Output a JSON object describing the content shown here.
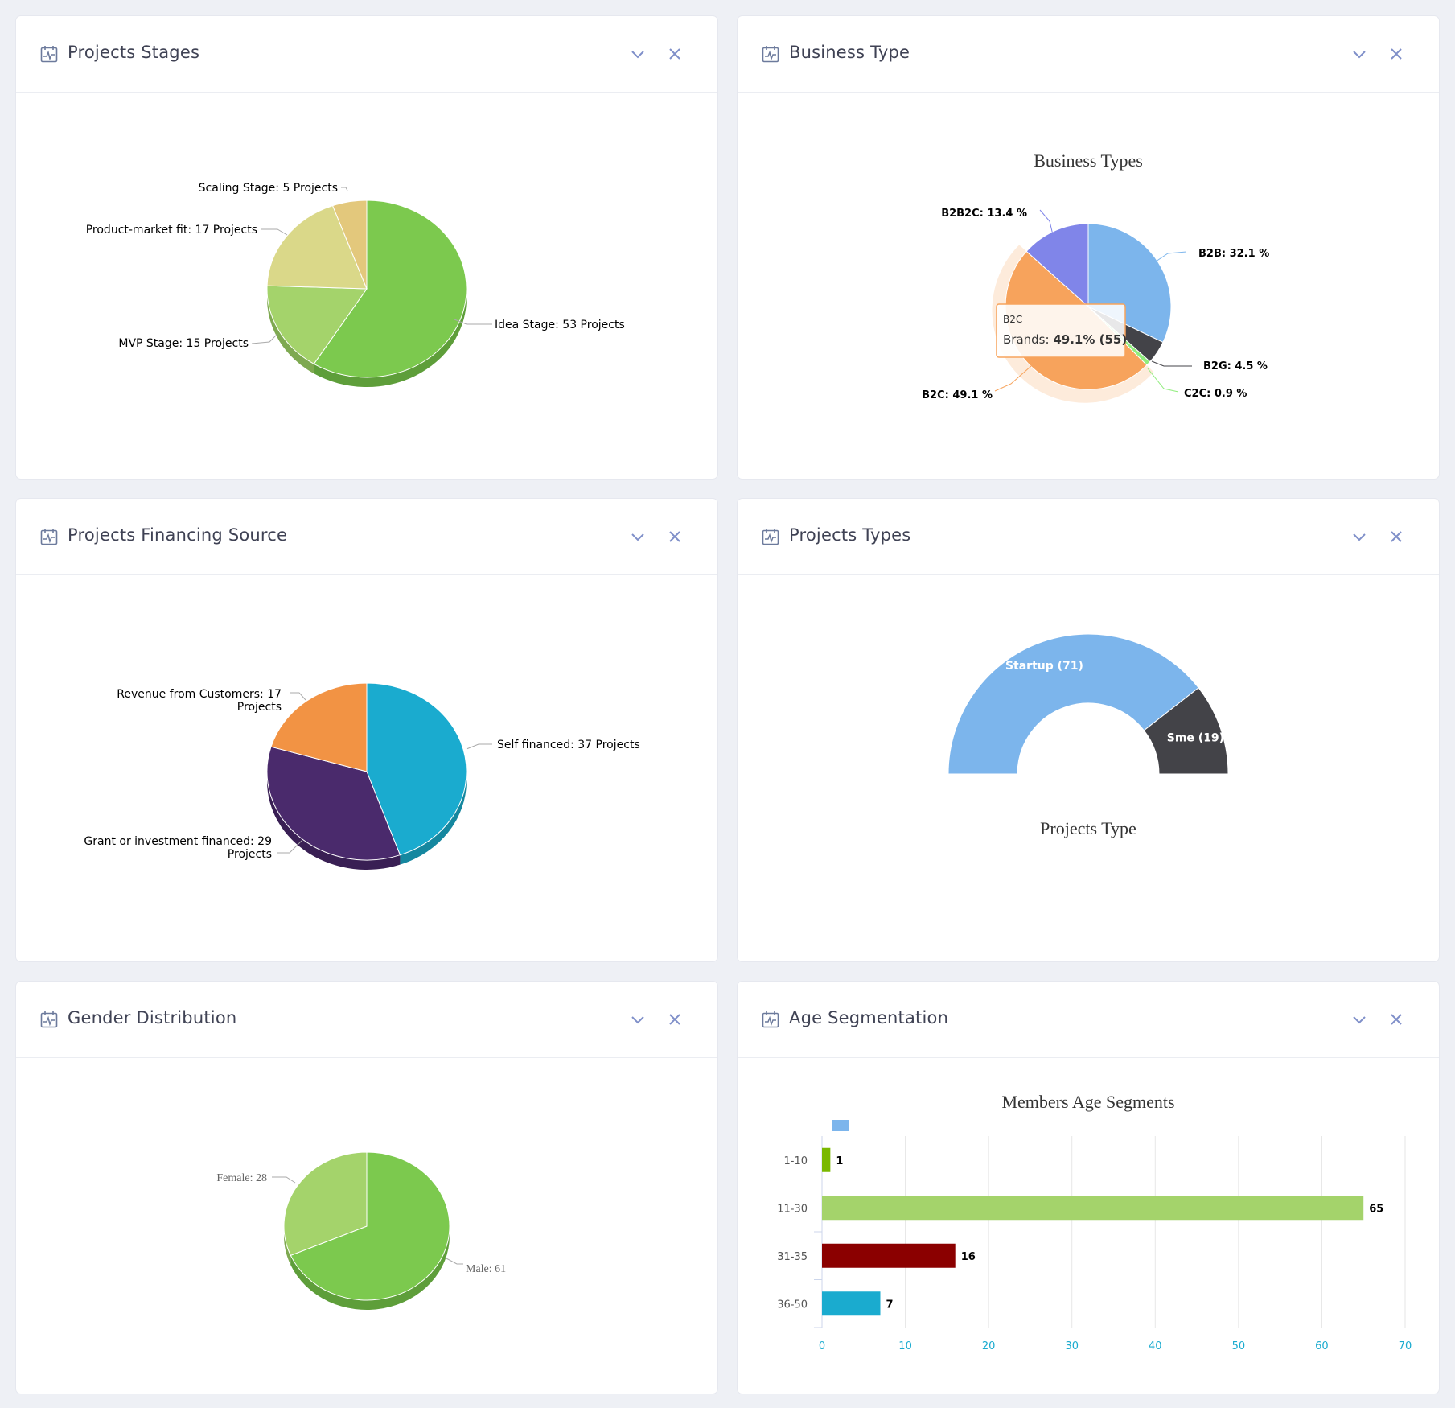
{
  "colors": {
    "icon": "#6c7a9c",
    "accent": "#7f8fc9"
  },
  "cards": [
    {
      "title": "Projects Stages",
      "chart_data": {
        "type": "pie",
        "title": "",
        "slices": [
          {
            "label": "Idea Stage: 53 Projects",
            "name": "Idea Stage",
            "value": 53,
            "color": "#7cc94e",
            "dark": "#5e9e3a"
          },
          {
            "label": "MVP Stage: 15 Projects",
            "name": "MVP Stage",
            "value": 15,
            "color": "#a4d36b",
            "dark": "#7ea951"
          },
          {
            "label": "Product-market fit: 17 Projects",
            "name": "Product-market fit",
            "value": 17,
            "color": "#dad889",
            "dark": "#b0ae69"
          },
          {
            "label": "Scaling Stage: 5 Projects",
            "name": "Scaling Stage",
            "value": 5,
            "color": "#e3c87c",
            "dark": "#b89f5e"
          }
        ]
      }
    },
    {
      "title": "Business Type",
      "chart_data": {
        "type": "pie",
        "title": "Business Types",
        "slices": [
          {
            "label": "B2B: 32.1 %",
            "name": "B2B",
            "value": 32.1,
            "color": "#7cb5ec"
          },
          {
            "label": "B2G: 4.5 %",
            "name": "B2G",
            "value": 4.5,
            "color": "#434348"
          },
          {
            "label": "C2C: 0.9 %",
            "name": "C2C",
            "value": 0.9,
            "color": "#90ed7d"
          },
          {
            "label": "B2C: 49.1 %",
            "name": "B2C",
            "value": 49.1,
            "color": "#f7a35c"
          },
          {
            "label": "B2B2C: 13.4 %",
            "name": "B2B2C",
            "value": 13.4,
            "color": "#8085e9"
          }
        ],
        "tooltip": {
          "line1": "B2C",
          "prefix": "Brands: ",
          "value": "49.1% (55)"
        }
      }
    },
    {
      "title": "Projects Financing Source",
      "chart_data": {
        "type": "pie",
        "title": "",
        "slices": [
          {
            "label1": "Self financed: 37 Projects",
            "label2": "",
            "name": "Self financed",
            "value": 37,
            "color": "#1aabcf",
            "dark": "#15879f"
          },
          {
            "label1": "Grant or investment financed: 29",
            "label2": "Projects",
            "name": "Grant or investment financed",
            "value": 29,
            "color": "#4a2a6c",
            "dark": "#391f54"
          },
          {
            "label1": "Revenue from Customers: 17",
            "label2": "Projects",
            "name": "Revenue from Customers",
            "value": 17,
            "color": "#f29344",
            "dark": "#c27433"
          }
        ]
      }
    },
    {
      "title": "Projects Types",
      "chart_data": {
        "type": "pie",
        "title": "Projects Type",
        "slices": [
          {
            "label": "Startup (71)",
            "name": "Startup",
            "value": 71,
            "color": "#7cb5ec"
          },
          {
            "label": "Sme (19)",
            "name": "Sme",
            "value": 19,
            "color": "#434348"
          }
        ]
      }
    },
    {
      "title": "Gender Distribution",
      "chart_data": {
        "type": "pie",
        "title": "",
        "slices": [
          {
            "label": "Male: 61",
            "name": "Male",
            "value": 61,
            "color": "#7cc94e",
            "dark": "#5e9e3a"
          },
          {
            "label": "Female: 28",
            "name": "Female",
            "value": 28,
            "color": "#a4d36b",
            "dark": "#7ea951"
          }
        ]
      }
    },
    {
      "title": "Age Segmentation",
      "chart_data": {
        "type": "bar",
        "orientation": "horizontal",
        "title": "Members Age Segments",
        "categories": [
          "1-10",
          "11-30",
          "31-35",
          "36-50"
        ],
        "values": [
          1,
          65,
          16,
          7
        ],
        "colors": [
          "#7ab800",
          "#a4d36b",
          "#8b0000",
          "#1aabcf"
        ],
        "legend_color": "#7cb5ec",
        "xlim": [
          0,
          70
        ],
        "xticks": [
          0,
          10,
          20,
          30,
          40,
          50,
          60,
          70
        ],
        "grid": true
      }
    }
  ]
}
